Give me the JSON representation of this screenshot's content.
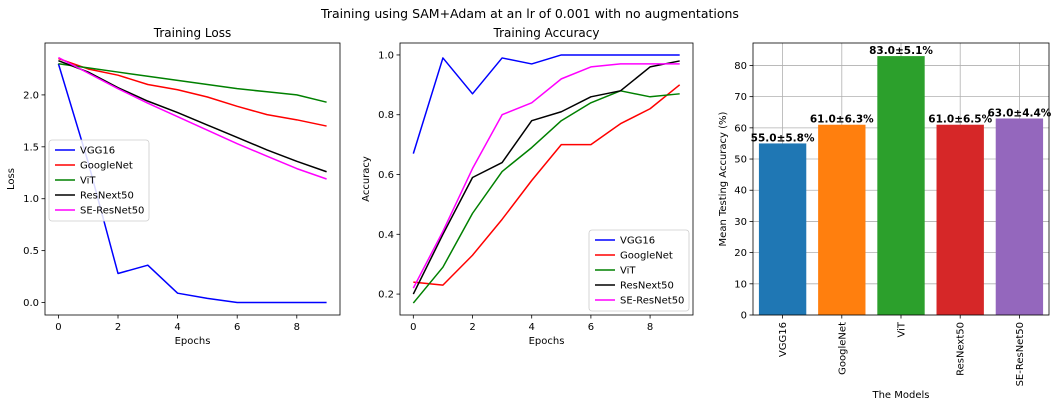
{
  "figure": {
    "suptitle": "Training using SAM+Adam at an lr of 0.001 with no augmentations"
  },
  "chart_data": [
    {
      "type": "line",
      "title": "Training Loss",
      "xlabel": "Epochs",
      "ylabel": "Loss",
      "xlim": [
        -0.45,
        9.45
      ],
      "ylim": [
        -0.12,
        2.5
      ],
      "xticks": [
        0,
        2,
        4,
        6,
        8
      ],
      "yticks": [
        0.0,
        0.5,
        1.0,
        1.5,
        2.0
      ],
      "ytick_labels": [
        "0.0",
        "0.5",
        "1.0",
        "1.5",
        "2.0"
      ],
      "legend_position": "center-left",
      "x": [
        0,
        1,
        2,
        3,
        4,
        5,
        6,
        7,
        8,
        9
      ],
      "series": [
        {
          "name": "VGG16",
          "color": "#0000ff",
          "values": [
            2.3,
            1.35,
            0.28,
            0.36,
            0.09,
            0.04,
            0.0,
            0.0,
            0.0,
            0.0
          ]
        },
        {
          "name": "GoogleNet",
          "color": "#ff0000",
          "values": [
            2.35,
            2.25,
            2.19,
            2.1,
            2.05,
            1.98,
            1.89,
            1.81,
            1.76,
            1.7
          ]
        },
        {
          "name": "ViT",
          "color": "#008000",
          "values": [
            2.3,
            2.26,
            2.22,
            2.18,
            2.14,
            2.1,
            2.06,
            2.03,
            2.0,
            1.93
          ]
        },
        {
          "name": "ResNext50",
          "color": "#000000",
          "values": [
            2.33,
            2.22,
            2.07,
            1.94,
            1.83,
            1.71,
            1.59,
            1.47,
            1.36,
            1.26
          ]
        },
        {
          "name": "SE-ResNet50",
          "color": "#ff00ff",
          "values": [
            2.36,
            2.21,
            2.06,
            1.92,
            1.79,
            1.66,
            1.53,
            1.41,
            1.29,
            1.19
          ]
        }
      ]
    },
    {
      "type": "line",
      "title": "Training Accuracy",
      "xlabel": "Epochs",
      "ylabel": "Accuracy",
      "xlim": [
        -0.45,
        9.45
      ],
      "ylim": [
        0.13,
        1.04
      ],
      "xticks": [
        0,
        2,
        4,
        6,
        8
      ],
      "yticks": [
        0.2,
        0.4,
        0.6,
        0.8,
        1.0
      ],
      "ytick_labels": [
        "0.2",
        "0.4",
        "0.6",
        "0.8",
        "1.0"
      ],
      "legend_position": "lower-right",
      "x": [
        0,
        1,
        2,
        3,
        4,
        5,
        6,
        7,
        8,
        9
      ],
      "series": [
        {
          "name": "VGG16",
          "color": "#0000ff",
          "values": [
            0.67,
            0.99,
            0.87,
            0.99,
            0.97,
            1.0,
            1.0,
            1.0,
            1.0,
            1.0
          ]
        },
        {
          "name": "GoogleNet",
          "color": "#ff0000",
          "values": [
            0.24,
            0.23,
            0.33,
            0.45,
            0.58,
            0.7,
            0.7,
            0.77,
            0.82,
            0.9
          ]
        },
        {
          "name": "ViT",
          "color": "#008000",
          "values": [
            0.17,
            0.29,
            0.47,
            0.61,
            0.69,
            0.78,
            0.84,
            0.88,
            0.86,
            0.87
          ]
        },
        {
          "name": "ResNext50",
          "color": "#000000",
          "values": [
            0.2,
            0.4,
            0.59,
            0.64,
            0.78,
            0.81,
            0.86,
            0.88,
            0.96,
            0.98
          ]
        },
        {
          "name": "SE-ResNet50",
          "color": "#ff00ff",
          "values": [
            0.22,
            0.41,
            0.62,
            0.8,
            0.84,
            0.92,
            0.96,
            0.97,
            0.97,
            0.97
          ]
        }
      ]
    },
    {
      "type": "bar",
      "title": "",
      "xlabel": "The Models",
      "ylabel": "Mean Testing Accuracy (%)",
      "ylim": [
        0,
        87.2
      ],
      "yticks": [
        0,
        10,
        20,
        30,
        40,
        50,
        60,
        70,
        80
      ],
      "grid": true,
      "categories": [
        "VGG16",
        "GoogleNet",
        "ViT",
        "ResNext50",
        "SE-ResNet50"
      ],
      "values": [
        55.0,
        61.0,
        83.0,
        61.0,
        63.0
      ],
      "labels": [
        "55.0±5.8%",
        "61.0±6.3%",
        "83.0±5.1%",
        "61.0±6.5%",
        "63.0±4.4%"
      ],
      "colors": [
        "#1f77b4",
        "#ff7f0e",
        "#2ca02c",
        "#d62728",
        "#9467bd"
      ]
    }
  ]
}
